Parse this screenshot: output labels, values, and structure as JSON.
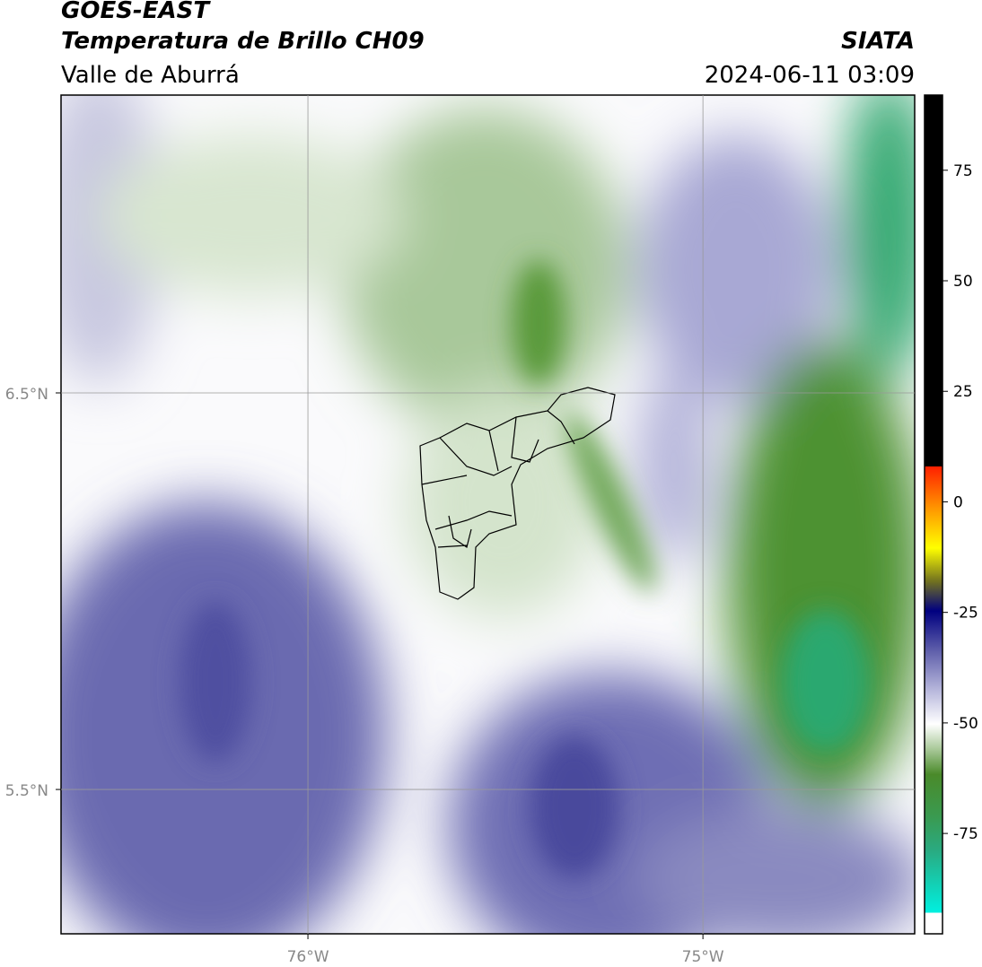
{
  "title": "GOES-EAST",
  "subtitle": "Temperatura de Brillo CH09",
  "region": "Valle de Aburrá",
  "source": "SIATA",
  "datetime": "2024-06-11 03:09",
  "map": {
    "xlim": [
      -76.625,
      -74.464
    ],
    "ylim": [
      5.136,
      7.251
    ],
    "xticks": [
      {
        "value": -76,
        "label": "76°W"
      },
      {
        "value": -75,
        "label": "75°W"
      }
    ],
    "yticks": [
      {
        "value": 6.5,
        "label": "6.5°N"
      },
      {
        "value": 5.5,
        "label": "5.5°N"
      }
    ],
    "grid": true
  },
  "colorbar": {
    "lim": [
      -97.7,
      92
    ],
    "ticks": [
      75,
      50,
      25,
      0,
      -25,
      -50,
      -75
    ]
  }
}
